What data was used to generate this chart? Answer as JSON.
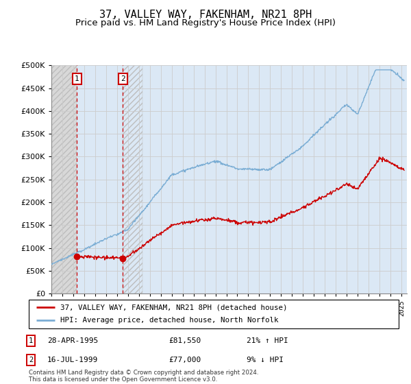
{
  "title": "37, VALLEY WAY, FAKENHAM, NR21 8PH",
  "subtitle": "Price paid vs. HM Land Registry's House Price Index (HPI)",
  "ytick_values": [
    0,
    50000,
    100000,
    150000,
    200000,
    250000,
    300000,
    350000,
    400000,
    450000,
    500000
  ],
  "xlim_start": 1993.0,
  "xlim_end": 2025.5,
  "ylim": [
    0,
    500000
  ],
  "sale1_x": 1995.32,
  "sale1_y": 81550,
  "sale1_label": "1",
  "sale1_date": "28-APR-1995",
  "sale1_price": "£81,550",
  "sale1_hpi": "21% ↑ HPI",
  "sale2_x": 1999.54,
  "sale2_y": 77000,
  "sale2_label": "2",
  "sale2_date": "16-JUL-1999",
  "sale2_price": "£77,000",
  "sale2_hpi": "9% ↓ HPI",
  "legend_line1": "37, VALLEY WAY, FAKENHAM, NR21 8PH (detached house)",
  "legend_line2": "HPI: Average price, detached house, North Norfolk",
  "footer": "Contains HM Land Registry data © Crown copyright and database right 2024.\nThis data is licensed under the Open Government Licence v3.0.",
  "red_line_color": "#cc0000",
  "blue_line_color": "#7aadd4",
  "title_fontsize": 11,
  "subtitle_fontsize": 9.5
}
